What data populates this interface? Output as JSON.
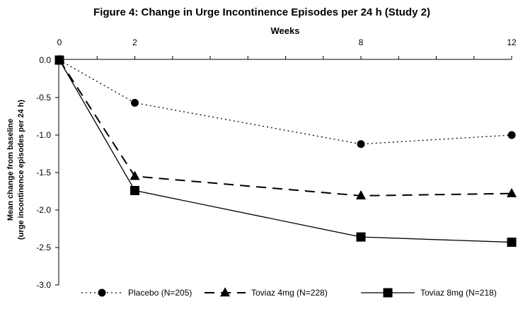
{
  "chart_data": {
    "type": "line",
    "title": "Figure 4: Change in Urge Incontinence Episodes per 24 h (Study 2)",
    "xlabel": "Weeks",
    "ylabel": [
      "Mean change from baseline",
      "(urge incontinence episodes per 24 h)"
    ],
    "x": [
      0,
      2,
      8,
      12
    ],
    "x_ticks": [
      "0",
      "2",
      "8",
      "12"
    ],
    "xlim": [
      0,
      12
    ],
    "ylim": [
      -3.0,
      0.0
    ],
    "y_ticks": [
      "0.0",
      "-0.5",
      "-1.0",
      "-1.5",
      "-2.0",
      "-2.5",
      "-3.0"
    ],
    "x_axis_position": "top",
    "grid": false,
    "legend_position": "bottom",
    "series": [
      {
        "name": "Placebo (N=205)",
        "values": [
          0,
          -0.57,
          -1.12,
          -1.0
        ],
        "line": "dotted",
        "marker": "circle",
        "color": "#000000"
      },
      {
        "name": "Toviaz 4mg (N=228)",
        "values": [
          0,
          -1.55,
          -1.81,
          -1.78
        ],
        "line": "dashed",
        "marker": "triangle",
        "color": "#000000"
      },
      {
        "name": "Toviaz 8mg (N=218)",
        "values": [
          0,
          -1.74,
          -2.36,
          -2.43
        ],
        "line": "solid",
        "marker": "square",
        "color": "#000000"
      }
    ]
  }
}
